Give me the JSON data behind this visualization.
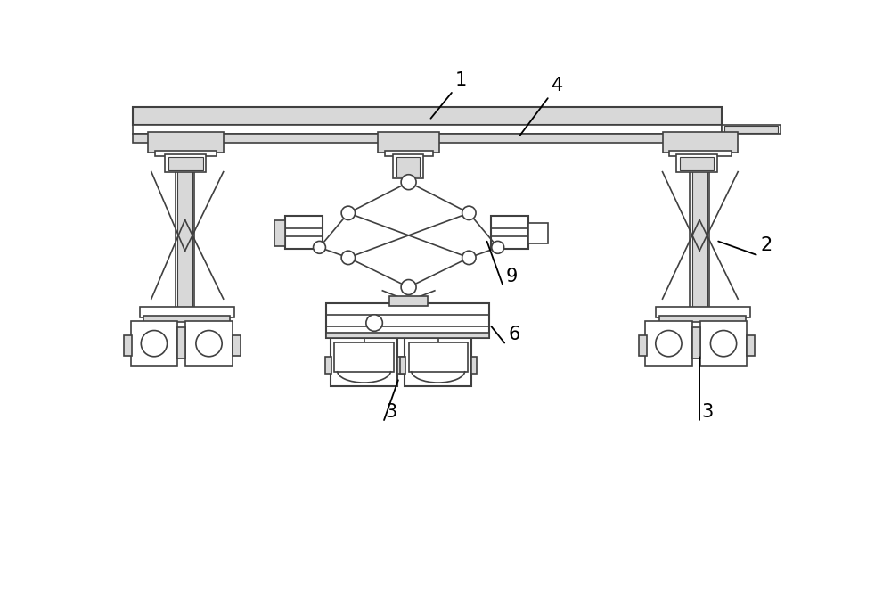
{
  "bg_color": "#ffffff",
  "line_color": "#404040",
  "fill_light": "#d8d8d8",
  "fill_med": "#c0c0c0",
  "label_1": "1",
  "label_2": "2",
  "label_3": "3",
  "label_4": "4",
  "label_6": "6",
  "label_9": "9",
  "label_fontsize": 15,
  "fig_width": 10.0,
  "fig_height": 6.75,
  "dpi": 100,
  "lw": 1.2
}
